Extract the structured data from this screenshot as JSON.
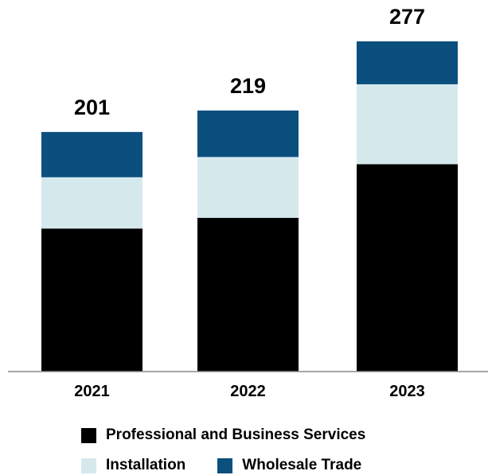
{
  "chart_data": {
    "type": "bar",
    "stacked": true,
    "categories": [
      "2021",
      "2022",
      "2023"
    ],
    "totals": [
      "201",
      "219",
      "277"
    ],
    "series": [
      {
        "name": "Professional and Business Services",
        "values": [
          120,
          129,
          174
        ],
        "color": "#000000"
      },
      {
        "name": "Installation",
        "values": [
          43,
          51,
          67
        ],
        "color": "#d5e9ed"
      },
      {
        "name": "Wholesale Trade",
        "values": [
          38,
          39,
          36
        ],
        "color": "#0b4f7e"
      }
    ],
    "ylim": [
      0,
      277
    ],
    "grid": false,
    "legend_position": "bottom"
  },
  "legend": {
    "items": [
      {
        "label": "Professional and Business Services",
        "color": "#000000"
      },
      {
        "label": "Installation",
        "color": "#d5e9ed"
      },
      {
        "label": "Wholesale Trade",
        "color": "#0b4f7e"
      }
    ]
  }
}
